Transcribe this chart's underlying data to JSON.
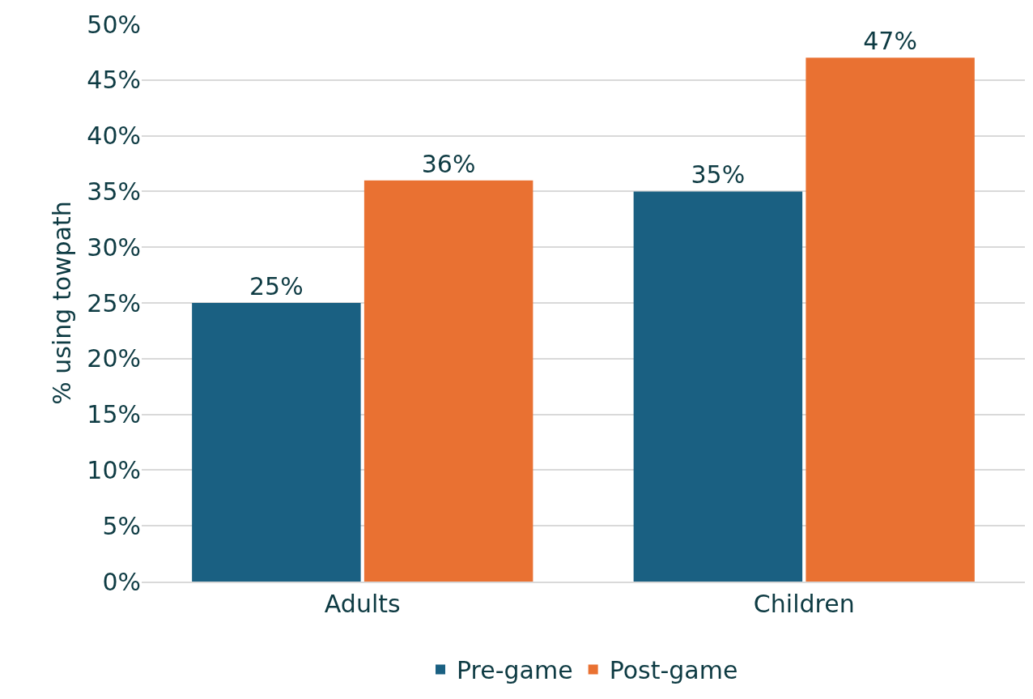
{
  "chart_data": {
    "type": "bar",
    "ylabel": "% using towpath",
    "categories": [
      "Adults",
      "Children"
    ],
    "series": [
      {
        "name": "Pre-game",
        "color": "#1a6082",
        "values": [
          25,
          35
        ],
        "value_labels": [
          "25%",
          "35%"
        ]
      },
      {
        "name": "Post-game",
        "color": "#e97132",
        "values": [
          36,
          47
        ],
        "value_labels": [
          "36%",
          "47%"
        ]
      }
    ],
    "ylim": [
      0,
      50
    ],
    "yticks": [
      {
        "value": 0,
        "label": "0%"
      },
      {
        "value": 5,
        "label": "5%"
      },
      {
        "value": 10,
        "label": "10%"
      },
      {
        "value": 15,
        "label": "15%"
      },
      {
        "value": 20,
        "label": "20%"
      },
      {
        "value": 25,
        "label": "25%"
      },
      {
        "value": 30,
        "label": "30%"
      },
      {
        "value": 35,
        "label": "35%"
      },
      {
        "value": 40,
        "label": "40%"
      },
      {
        "value": 45,
        "label": "45%"
      },
      {
        "value": 50,
        "label": "50%"
      }
    ],
    "grid": "y",
    "legend": "bottom"
  }
}
